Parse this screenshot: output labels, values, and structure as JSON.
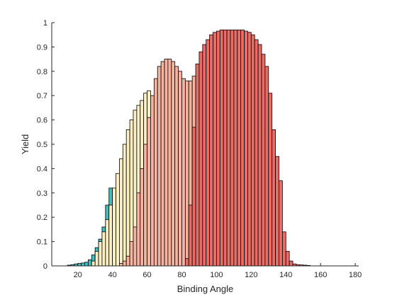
{
  "chart_data": {
    "type": "bar",
    "xlabel": "Binding Angle",
    "ylabel": "Yield",
    "xlim": [
      5,
      182
    ],
    "ylim": [
      0,
      1
    ],
    "xticks": [
      20,
      40,
      60,
      80,
      100,
      120,
      140,
      160,
      180
    ],
    "yticks": [
      0,
      0.1,
      0.2,
      0.3,
      0.4,
      0.5,
      0.6,
      0.7,
      0.8,
      0.9,
      1
    ],
    "ytick_labels": [
      "0",
      "0.1",
      "0.2",
      "0.3",
      "0.4",
      "0.5",
      "0.6",
      "0.7",
      "0.8",
      "0.9",
      "1"
    ],
    "bin_width": 2,
    "grid": false,
    "series": [
      {
        "color": "#3FBFBF",
        "bins": [
          [
            15,
            0.003
          ],
          [
            17,
            0.005
          ],
          [
            19,
            0.008
          ],
          [
            21,
            0.01
          ],
          [
            23,
            0.012
          ],
          [
            25,
            0.015
          ],
          [
            27,
            0.025
          ],
          [
            29,
            0.045
          ],
          [
            31,
            0.075
          ],
          [
            33,
            0.11
          ],
          [
            35,
            0.16
          ],
          [
            37,
            0.25
          ],
          [
            39,
            0.32
          ],
          [
            41,
            0.23
          ],
          [
            43,
            0.19
          ],
          [
            45,
            0.14
          ],
          [
            47,
            0.1
          ],
          [
            49,
            0.07
          ],
          [
            51,
            0.04
          ],
          [
            53,
            0.02
          ],
          [
            55,
            0.01
          ]
        ]
      },
      {
        "color": "#FCEFC4",
        "bins": [
          [
            29,
            0.02
          ],
          [
            31,
            0.06
          ],
          [
            33,
            0.1
          ],
          [
            35,
            0.14
          ],
          [
            37,
            0.19
          ],
          [
            39,
            0.25
          ],
          [
            41,
            0.32
          ],
          [
            43,
            0.38
          ],
          [
            45,
            0.44
          ],
          [
            47,
            0.5
          ],
          [
            49,
            0.56
          ],
          [
            51,
            0.6
          ],
          [
            53,
            0.64
          ],
          [
            55,
            0.66
          ],
          [
            57,
            0.68
          ],
          [
            59,
            0.71
          ],
          [
            61,
            0.72
          ],
          [
            63,
            0.63
          ],
          [
            65,
            0.5
          ],
          [
            67,
            0.35
          ],
          [
            69,
            0.2
          ],
          [
            71,
            0.08
          ],
          [
            73,
            0.03
          ]
        ]
      },
      {
        "color": "#F6B3A0",
        "bins": [
          [
            45,
            0.01
          ],
          [
            47,
            0.02
          ],
          [
            49,
            0.04
          ],
          [
            51,
            0.1
          ],
          [
            53,
            0.16
          ],
          [
            55,
            0.3
          ],
          [
            57,
            0.4
          ],
          [
            59,
            0.5
          ],
          [
            61,
            0.61
          ],
          [
            63,
            0.7
          ],
          [
            65,
            0.77
          ],
          [
            67,
            0.82
          ],
          [
            69,
            0.84
          ],
          [
            71,
            0.85
          ],
          [
            73,
            0.85
          ],
          [
            75,
            0.84
          ],
          [
            77,
            0.82
          ],
          [
            79,
            0.8
          ],
          [
            81,
            0.77
          ],
          [
            83,
            0.76
          ],
          [
            85,
            0.76
          ],
          [
            87,
            0.78
          ]
        ]
      },
      {
        "color": "#EA6C66",
        "bins": [
          [
            83,
            0.03
          ],
          [
            85,
            0.25
          ],
          [
            87,
            0.57
          ],
          [
            89,
            0.83
          ],
          [
            91,
            0.88
          ],
          [
            93,
            0.91
          ],
          [
            95,
            0.93
          ],
          [
            97,
            0.95
          ],
          [
            99,
            0.96
          ],
          [
            101,
            0.965
          ],
          [
            103,
            0.97
          ],
          [
            105,
            0.97
          ],
          [
            107,
            0.97
          ],
          [
            109,
            0.97
          ],
          [
            111,
            0.97
          ],
          [
            113,
            0.97
          ],
          [
            115,
            0.97
          ],
          [
            117,
            0.965
          ],
          [
            119,
            0.96
          ],
          [
            121,
            0.95
          ],
          [
            123,
            0.93
          ],
          [
            125,
            0.91
          ],
          [
            127,
            0.87
          ],
          [
            129,
            0.82
          ],
          [
            131,
            0.71
          ],
          [
            133,
            0.56
          ],
          [
            135,
            0.45
          ],
          [
            137,
            0.35
          ],
          [
            139,
            0.14
          ],
          [
            141,
            0.06
          ],
          [
            143,
            0.02
          ],
          [
            145,
            0.008
          ],
          [
            147,
            0.005
          ],
          [
            149,
            0.004
          ],
          [
            151,
            0.003
          ],
          [
            153,
            0.002
          ]
        ]
      }
    ]
  }
}
